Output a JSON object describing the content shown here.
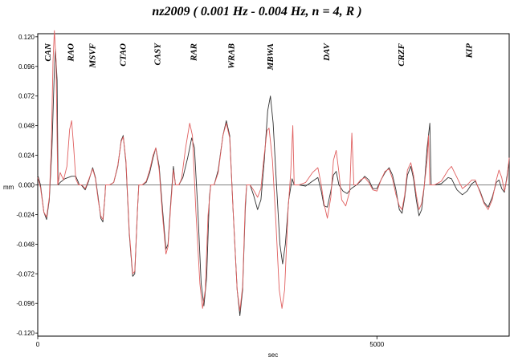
{
  "chart_data": {
    "type": "line",
    "title": "nz2009 ( 0.001 Hz - 0.004 Hz, n = 4, R )",
    "xlabel": "sec",
    "ylabel": "mm",
    "xlim": [
      0,
      6950
    ],
    "ylim": [
      -0.1225,
      0.1225
    ],
    "x_ticks": [
      {
        "value": 0,
        "label": "0"
      },
      {
        "value": 5000,
        "label": "5000"
      }
    ],
    "y_ticks": [
      {
        "value": 0.12,
        "label": "0.120"
      },
      {
        "value": 0.096,
        "label": "0.096"
      },
      {
        "value": 0.072,
        "label": "0.072"
      },
      {
        "value": 0.048,
        "label": "0.048"
      },
      {
        "value": 0.024,
        "label": "0.024"
      },
      {
        "value": 0.0,
        "label": "0.000"
      },
      {
        "value": -0.024,
        "label": "-0.024"
      },
      {
        "value": -0.048,
        "label": "-0.048"
      },
      {
        "value": -0.072,
        "label": "-0.072"
      },
      {
        "value": -0.096,
        "label": "-0.096"
      },
      {
        "value": -0.12,
        "label": "-0.120"
      }
    ],
    "station_labels": [
      {
        "text": "CAN",
        "x": 140
      },
      {
        "text": "RAO",
        "x": 480
      },
      {
        "text": "MSVF",
        "x": 800
      },
      {
        "text": "CTAO",
        "x": 1250
      },
      {
        "text": "CASY",
        "x": 1760
      },
      {
        "text": "RAR",
        "x": 2290
      },
      {
        "text": "WRAB",
        "x": 2850
      },
      {
        "text": "MBWA",
        "x": 3420
      },
      {
        "text": "DAV",
        "x": 4250
      },
      {
        "text": "CRZF",
        "x": 5350
      },
      {
        "text": "KIP",
        "x": 6350
      }
    ],
    "series": [
      {
        "color": "#333333",
        "points": [
          [
            0,
            0.008
          ],
          [
            40,
            0.0
          ],
          [
            90,
            -0.022
          ],
          [
            130,
            -0.028
          ],
          [
            170,
            -0.012
          ],
          [
            210,
            0.03
          ],
          [
            240,
            0.085
          ],
          [
            260,
            0.11
          ],
          [
            285,
            0.085
          ],
          [
            300,
            0.0
          ],
          [
            330,
            0.002
          ],
          [
            400,
            0.005
          ],
          [
            500,
            0.007
          ],
          [
            560,
            0.007
          ],
          [
            600,
            0.002
          ],
          [
            610,
            0.0
          ],
          [
            640,
            0.0
          ],
          [
            700,
            -0.004
          ],
          [
            750,
            0.003
          ],
          [
            810,
            0.014
          ],
          [
            850,
            0.006
          ],
          [
            890,
            -0.01
          ],
          [
            930,
            -0.027
          ],
          [
            960,
            -0.03
          ],
          [
            990,
            -0.01
          ],
          [
            1000,
            0.0
          ],
          [
            1060,
            0.0
          ],
          [
            1120,
            0.002
          ],
          [
            1180,
            0.015
          ],
          [
            1230,
            0.036
          ],
          [
            1260,
            0.04
          ],
          [
            1300,
            0.018
          ],
          [
            1350,
            -0.04
          ],
          [
            1400,
            -0.074
          ],
          [
            1430,
            -0.072
          ],
          [
            1470,
            -0.02
          ],
          [
            1490,
            0.0
          ],
          [
            1540,
            0.0
          ],
          [
            1600,
            0.002
          ],
          [
            1650,
            0.01
          ],
          [
            1700,
            0.022
          ],
          [
            1740,
            0.03
          ],
          [
            1790,
            0.015
          ],
          [
            1840,
            -0.02
          ],
          [
            1890,
            -0.052
          ],
          [
            1920,
            -0.048
          ],
          [
            1960,
            -0.015
          ],
          [
            2000,
            0.015
          ],
          [
            2030,
            0.0
          ],
          [
            2080,
            0.0
          ],
          [
            2140,
            0.006
          ],
          [
            2210,
            0.022
          ],
          [
            2270,
            0.038
          ],
          [
            2310,
            0.03
          ],
          [
            2360,
            -0.02
          ],
          [
            2410,
            -0.08
          ],
          [
            2450,
            -0.098
          ],
          [
            2490,
            -0.075
          ],
          [
            2530,
            -0.01
          ],
          [
            2550,
            0.0
          ],
          [
            2600,
            0.0
          ],
          [
            2660,
            0.012
          ],
          [
            2730,
            0.04
          ],
          [
            2780,
            0.052
          ],
          [
            2830,
            0.04
          ],
          [
            2880,
            -0.02
          ],
          [
            2940,
            -0.085
          ],
          [
            2980,
            -0.106
          ],
          [
            3020,
            -0.085
          ],
          [
            3060,
            -0.02
          ],
          [
            3080,
            0.0
          ],
          [
            3130,
            0.0
          ],
          [
            3180,
            -0.008
          ],
          [
            3240,
            -0.02
          ],
          [
            3290,
            -0.012
          ],
          [
            3340,
            0.02
          ],
          [
            3390,
            0.06
          ],
          [
            3430,
            0.072
          ],
          [
            3470,
            0.05
          ],
          [
            3520,
            0.0
          ],
          [
            3570,
            -0.048
          ],
          [
            3610,
            -0.064
          ],
          [
            3650,
            -0.048
          ],
          [
            3700,
            -0.012
          ],
          [
            3750,
            0.005
          ],
          [
            3780,
            0.0
          ],
          [
            3850,
            0.0
          ],
          [
            3950,
            -0.001
          ],
          [
            4050,
            0.003
          ],
          [
            4130,
            0.006
          ],
          [
            4180,
            -0.005
          ],
          [
            4220,
            -0.017
          ],
          [
            4270,
            -0.018
          ],
          [
            4320,
            -0.005
          ],
          [
            4360,
            0.008
          ],
          [
            4400,
            0.011
          ],
          [
            4440,
            0.0
          ],
          [
            4500,
            -0.005
          ],
          [
            4560,
            -0.007
          ],
          [
            4620,
            -0.003
          ],
          [
            4700,
            0.0
          ],
          [
            4760,
            0.003
          ],
          [
            4820,
            0.007
          ],
          [
            4880,
            0.004
          ],
          [
            4940,
            -0.003
          ],
          [
            5000,
            -0.003
          ],
          [
            5060,
            0.004
          ],
          [
            5120,
            0.01
          ],
          [
            5180,
            0.014
          ],
          [
            5230,
            0.008
          ],
          [
            5280,
            -0.004
          ],
          [
            5330,
            -0.02
          ],
          [
            5370,
            -0.023
          ],
          [
            5410,
            -0.01
          ],
          [
            5450,
            0.008
          ],
          [
            5500,
            0.015
          ],
          [
            5540,
            0.005
          ],
          [
            5580,
            -0.012
          ],
          [
            5620,
            -0.025
          ],
          [
            5660,
            -0.02
          ],
          [
            5700,
            0.0
          ],
          [
            5740,
            0.03
          ],
          [
            5780,
            0.05
          ],
          [
            5800,
            0.0
          ],
          [
            5850,
            0.0
          ],
          [
            5950,
            0.001
          ],
          [
            6050,
            0.006
          ],
          [
            6100,
            0.005
          ],
          [
            6180,
            -0.004
          ],
          [
            6260,
            -0.008
          ],
          [
            6330,
            -0.005
          ],
          [
            6400,
            0.001
          ],
          [
            6450,
            0.003
          ],
          [
            6520,
            -0.005
          ],
          [
            6580,
            -0.014
          ],
          [
            6640,
            -0.018
          ],
          [
            6700,
            -0.01
          ],
          [
            6760,
            0.002
          ],
          [
            6800,
            0.004
          ],
          [
            6840,
            -0.003
          ],
          [
            6880,
            -0.006
          ],
          [
            6920,
            0.008
          ],
          [
            6950,
            0.02
          ]
        ]
      },
      {
        "color": "#e06060",
        "points": [
          [
            0,
            0.006
          ],
          [
            40,
            -0.002
          ],
          [
            90,
            -0.022
          ],
          [
            130,
            -0.026
          ],
          [
            170,
            -0.01
          ],
          [
            200,
            0.03
          ],
          [
            225,
            0.1
          ],
          [
            245,
            0.125
          ],
          [
            270,
            0.1
          ],
          [
            295,
            0.0
          ],
          [
            330,
            0.01
          ],
          [
            380,
            0.004
          ],
          [
            430,
            0.015
          ],
          [
            470,
            0.045
          ],
          [
            500,
            0.052
          ],
          [
            530,
            0.03
          ],
          [
            560,
            0.005
          ],
          [
            600,
            0.0
          ],
          [
            650,
            0.0
          ],
          [
            700,
            -0.003
          ],
          [
            750,
            0.004
          ],
          [
            810,
            0.013
          ],
          [
            850,
            0.005
          ],
          [
            890,
            -0.012
          ],
          [
            930,
            -0.025
          ],
          [
            960,
            -0.028
          ],
          [
            990,
            -0.01
          ],
          [
            1000,
            0.0
          ],
          [
            1060,
            0.0
          ],
          [
            1120,
            0.002
          ],
          [
            1180,
            0.016
          ],
          [
            1230,
            0.035
          ],
          [
            1260,
            0.039
          ],
          [
            1300,
            0.02
          ],
          [
            1350,
            -0.038
          ],
          [
            1400,
            -0.072
          ],
          [
            1430,
            -0.07
          ],
          [
            1470,
            -0.02
          ],
          [
            1490,
            0.0
          ],
          [
            1540,
            0.0
          ],
          [
            1600,
            0.003
          ],
          [
            1650,
            0.012
          ],
          [
            1700,
            0.024
          ],
          [
            1740,
            0.03
          ],
          [
            1790,
            0.012
          ],
          [
            1840,
            -0.025
          ],
          [
            1890,
            -0.056
          ],
          [
            1920,
            -0.05
          ],
          [
            1960,
            -0.018
          ],
          [
            2000,
            0.012
          ],
          [
            2030,
            0.0
          ],
          [
            2080,
            0.0
          ],
          [
            2120,
            0.005
          ],
          [
            2180,
            0.03
          ],
          [
            2240,
            0.05
          ],
          [
            2280,
            0.04
          ],
          [
            2330,
            -0.02
          ],
          [
            2390,
            -0.08
          ],
          [
            2430,
            -0.1
          ],
          [
            2470,
            -0.085
          ],
          [
            2510,
            -0.025
          ],
          [
            2550,
            0.0
          ],
          [
            2600,
            0.0
          ],
          [
            2660,
            0.01
          ],
          [
            2730,
            0.04
          ],
          [
            2780,
            0.05
          ],
          [
            2830,
            0.038
          ],
          [
            2880,
            -0.02
          ],
          [
            2940,
            -0.085
          ],
          [
            2980,
            -0.102
          ],
          [
            3020,
            -0.082
          ],
          [
            3060,
            -0.015
          ],
          [
            3080,
            0.0
          ],
          [
            3130,
            0.0
          ],
          [
            3180,
            -0.004
          ],
          [
            3240,
            -0.01
          ],
          [
            3290,
            -0.003
          ],
          [
            3330,
            0.02
          ],
          [
            3380,
            0.044
          ],
          [
            3410,
            0.046
          ],
          [
            3460,
            0.02
          ],
          [
            3510,
            -0.03
          ],
          [
            3560,
            -0.085
          ],
          [
            3600,
            -0.1
          ],
          [
            3640,
            -0.085
          ],
          [
            3690,
            -0.02
          ],
          [
            3730,
            0.01
          ],
          [
            3760,
            0.048
          ],
          [
            3780,
            0.0
          ],
          [
            3850,
            0.0
          ],
          [
            3950,
            0.002
          ],
          [
            4050,
            0.01
          ],
          [
            4130,
            0.014
          ],
          [
            4180,
            0.0
          ],
          [
            4220,
            -0.015
          ],
          [
            4270,
            -0.027
          ],
          [
            4320,
            -0.01
          ],
          [
            4360,
            0.02
          ],
          [
            4400,
            0.028
          ],
          [
            4440,
            0.01
          ],
          [
            4480,
            -0.012
          ],
          [
            4540,
            -0.017
          ],
          [
            4600,
            -0.005
          ],
          [
            4630,
            0.042
          ],
          [
            4660,
            0.0
          ],
          [
            4700,
            0.0
          ],
          [
            4760,
            0.004
          ],
          [
            4820,
            0.006
          ],
          [
            4880,
            0.002
          ],
          [
            4940,
            -0.004
          ],
          [
            5000,
            -0.005
          ],
          [
            5060,
            0.004
          ],
          [
            5120,
            0.011
          ],
          [
            5180,
            0.013
          ],
          [
            5230,
            0.005
          ],
          [
            5280,
            -0.008
          ],
          [
            5330,
            -0.017
          ],
          [
            5370,
            -0.02
          ],
          [
            5410,
            -0.008
          ],
          [
            5450,
            0.012
          ],
          [
            5500,
            0.018
          ],
          [
            5540,
            0.008
          ],
          [
            5580,
            -0.008
          ],
          [
            5620,
            -0.02
          ],
          [
            5660,
            -0.015
          ],
          [
            5700,
            0.0
          ],
          [
            5740,
            0.02
          ],
          [
            5760,
            0.04
          ],
          [
            5780,
            0.0
          ],
          [
            5850,
            0.0
          ],
          [
            5950,
            0.003
          ],
          [
            6050,
            0.012
          ],
          [
            6100,
            0.015
          ],
          [
            6180,
            0.006
          ],
          [
            6260,
            -0.003
          ],
          [
            6330,
            0.0
          ],
          [
            6400,
            0.004
          ],
          [
            6450,
            0.004
          ],
          [
            6520,
            -0.006
          ],
          [
            6580,
            -0.015
          ],
          [
            6640,
            -0.02
          ],
          [
            6700,
            -0.012
          ],
          [
            6760,
            0.004
          ],
          [
            6800,
            0.012
          ],
          [
            6840,
            0.006
          ],
          [
            6880,
            -0.005
          ],
          [
            6920,
            0.006
          ],
          [
            6950,
            0.022
          ]
        ]
      }
    ]
  }
}
